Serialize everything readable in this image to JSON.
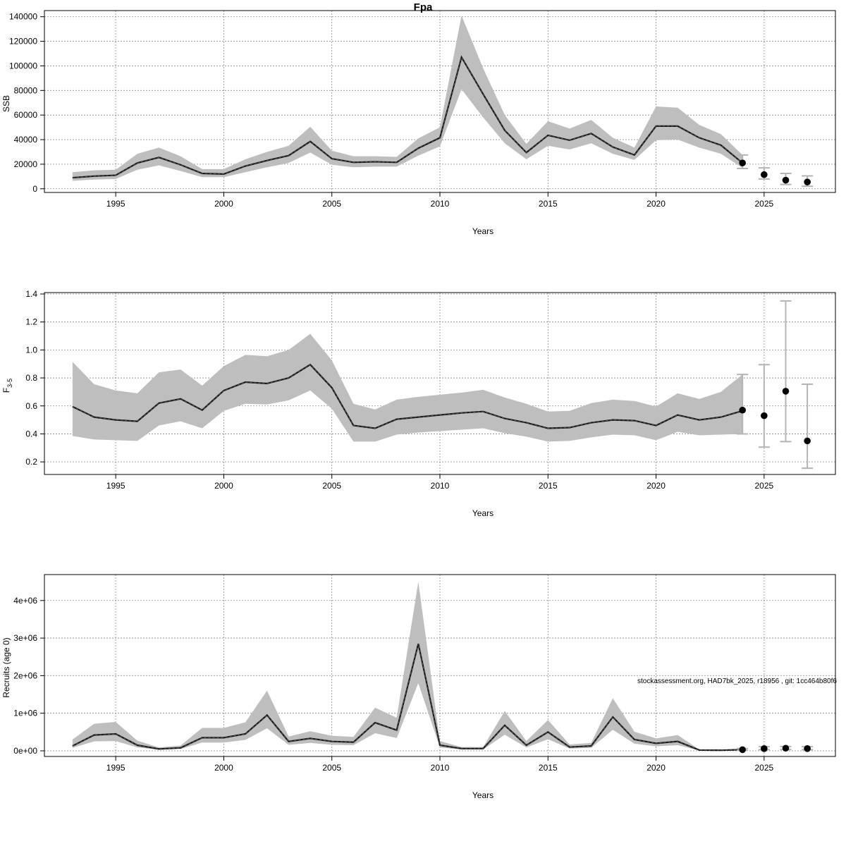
{
  "title": "Fpa",
  "credit": "stockassessment.org, HAD7bk_2025, r18956 , git: 1cc464b80f6",
  "colors": {
    "band": "#bebebe",
    "line": "#1a1a1a",
    "errorbar": "#b4b4b4",
    "point": "#000000",
    "grid": "#888888",
    "frame": "#000000"
  },
  "chart_data": [
    {
      "type": "line",
      "panel": "ssb",
      "title": "Fpa",
      "xlabel": "Years",
      "ylabel": "SSB",
      "xlim": [
        1991.7,
        2028.3
      ],
      "ylim": [
        -3000,
        145000
      ],
      "xticks": [
        1995,
        2000,
        2005,
        2010,
        2015,
        2020,
        2025
      ],
      "yticks": [
        0,
        20000,
        40000,
        60000,
        80000,
        100000,
        120000,
        140000
      ],
      "ytick_labels": [
        "0",
        "20000",
        "40000",
        "60000",
        "80000",
        "100000",
        "120000",
        "140000"
      ],
      "grid": true,
      "years": [
        1993,
        1994,
        1995,
        1996,
        1997,
        1998,
        1999,
        2000,
        2001,
        2002,
        2003,
        2004,
        2005,
        2006,
        2007,
        2008,
        2009,
        2010,
        2011,
        2012,
        2013,
        2014,
        2015,
        2016,
        2017,
        2018,
        2019,
        2020,
        2021,
        2022,
        2023,
        2024
      ],
      "estimate": [
        9000,
        10300,
        11000,
        21000,
        25500,
        19500,
        12500,
        12000,
        18500,
        23000,
        27000,
        38500,
        24500,
        21500,
        22000,
        21500,
        33000,
        41500,
        107000,
        77000,
        47500,
        29500,
        43500,
        39500,
        45000,
        34000,
        27500,
        51000,
        51000,
        41500,
        35500,
        21000
      ],
      "lower": [
        6500,
        7500,
        8000,
        15500,
        19000,
        14500,
        9500,
        9500,
        13500,
        17500,
        21000,
        29500,
        19500,
        17500,
        18000,
        18000,
        27000,
        34500,
        81000,
        58000,
        37000,
        24000,
        35000,
        32000,
        37000,
        28500,
        23500,
        39500,
        40000,
        33500,
        28500,
        17000
      ],
      "upper": [
        13500,
        15000,
        15500,
        28500,
        33500,
        26500,
        16000,
        16000,
        24000,
        30000,
        35000,
        50500,
        31000,
        26500,
        26500,
        26000,
        41000,
        50000,
        141000,
        98000,
        60000,
        36500,
        55000,
        49000,
        56000,
        41500,
        33500,
        67000,
        66000,
        52000,
        44500,
        27500
      ],
      "forecast": {
        "years": [
          2024,
          2025,
          2026,
          2027
        ],
        "estimate": [
          21000,
          11500,
          7000,
          5500
        ],
        "lower": [
          16500,
          8000,
          3500,
          2000
        ],
        "upper": [
          27500,
          17000,
          12500,
          10500
        ]
      }
    },
    {
      "type": "line",
      "panel": "fbar",
      "xlabel": "Years",
      "ylabel": "F",
      "ylabel_sub": "3-5",
      "xlim": [
        1991.7,
        2028.3
      ],
      "ylim": [
        0.11,
        1.41
      ],
      "xticks": [
        1995,
        2000,
        2005,
        2010,
        2015,
        2020,
        2025
      ],
      "yticks": [
        0.2,
        0.4,
        0.6,
        0.8,
        1.0,
        1.2,
        1.4
      ],
      "ytick_labels": [
        "0.2",
        "0.4",
        "0.6",
        "0.8",
        "1.0",
        "1.2",
        "1.4"
      ],
      "grid": true,
      "years": [
        1993,
        1994,
        1995,
        1996,
        1997,
        1998,
        1999,
        2000,
        2001,
        2002,
        2003,
        2004,
        2005,
        2006,
        2007,
        2008,
        2009,
        2010,
        2011,
        2012,
        2013,
        2014,
        2015,
        2016,
        2017,
        2018,
        2019,
        2020,
        2021,
        2022,
        2023,
        2024
      ],
      "estimate": [
        0.595,
        0.52,
        0.5,
        0.49,
        0.62,
        0.65,
        0.57,
        0.71,
        0.77,
        0.76,
        0.8,
        0.895,
        0.73,
        0.46,
        0.44,
        0.505,
        0.52,
        0.535,
        0.55,
        0.56,
        0.51,
        0.48,
        0.44,
        0.445,
        0.48,
        0.5,
        0.495,
        0.46,
        0.535,
        0.5,
        0.52,
        0.565
      ],
      "lower": [
        0.385,
        0.36,
        0.355,
        0.35,
        0.46,
        0.49,
        0.44,
        0.565,
        0.615,
        0.61,
        0.64,
        0.71,
        0.58,
        0.345,
        0.345,
        0.395,
        0.41,
        0.42,
        0.43,
        0.44,
        0.405,
        0.38,
        0.345,
        0.35,
        0.375,
        0.395,
        0.39,
        0.355,
        0.415,
        0.39,
        0.395,
        0.4
      ],
      "upper": [
        0.915,
        0.755,
        0.71,
        0.69,
        0.84,
        0.86,
        0.745,
        0.885,
        0.965,
        0.955,
        1.0,
        1.115,
        0.925,
        0.615,
        0.575,
        0.645,
        0.665,
        0.68,
        0.695,
        0.715,
        0.66,
        0.615,
        0.56,
        0.565,
        0.62,
        0.645,
        0.635,
        0.595,
        0.69,
        0.65,
        0.7,
        0.825
      ],
      "forecast": {
        "years": [
          2024,
          2025,
          2026,
          2027
        ],
        "estimate": [
          0.57,
          0.53,
          0.705,
          0.35
        ],
        "lower": [
          0.4,
          0.305,
          0.345,
          0.155
        ],
        "upper": [
          0.825,
          0.895,
          1.35,
          0.755
        ]
      }
    },
    {
      "type": "line",
      "panel": "recruits",
      "xlabel": "Years",
      "ylabel": "Recruits (age 0)",
      "xlim": [
        1991.7,
        2028.3
      ],
      "ylim": [
        -150000,
        4690000
      ],
      "xticks": [
        1995,
        2000,
        2005,
        2010,
        2015,
        2020,
        2025
      ],
      "yticks": [
        0,
        1000000,
        2000000,
        3000000,
        4000000
      ],
      "ytick_labels": [
        "0e+00",
        "1e+06",
        "2e+06",
        "3e+06",
        "4e+06"
      ],
      "grid": true,
      "years": [
        1993,
        1994,
        1995,
        1996,
        1997,
        1998,
        1999,
        2000,
        2001,
        2002,
        2003,
        2004,
        2005,
        2006,
        2007,
        2008,
        2009,
        2010,
        2011,
        2012,
        2013,
        2014,
        2015,
        2016,
        2017,
        2018,
        2019,
        2020,
        2021,
        2022,
        2023,
        2024
      ],
      "estimate": [
        130000,
        420000,
        450000,
        150000,
        50000,
        80000,
        350000,
        350000,
        450000,
        950000,
        250000,
        330000,
        250000,
        230000,
        750000,
        550000,
        2850000,
        150000,
        60000,
        60000,
        680000,
        150000,
        500000,
        100000,
        130000,
        900000,
        300000,
        200000,
        250000,
        20000,
        15000,
        30000
      ],
      "lower": [
        80000,
        250000,
        260000,
        90000,
        30000,
        50000,
        220000,
        220000,
        290000,
        600000,
        160000,
        210000,
        160000,
        150000,
        470000,
        340000,
        1800000,
        90000,
        35000,
        35000,
        430000,
        90000,
        310000,
        60000,
        80000,
        560000,
        190000,
        120000,
        150000,
        10000,
        8000,
        15000
      ],
      "upper": [
        300000,
        720000,
        770000,
        270000,
        90000,
        140000,
        610000,
        610000,
        760000,
        1600000,
        380000,
        520000,
        400000,
        370000,
        1150000,
        880000,
        4500000,
        260000,
        100000,
        100000,
        1060000,
        260000,
        820000,
        170000,
        210000,
        1400000,
        510000,
        330000,
        420000,
        35000,
        30000,
        60000
      ],
      "forecast": {
        "years": [
          2024,
          2025,
          2026,
          2027
        ],
        "estimate": [
          30000,
          60000,
          70000,
          60000
        ],
        "lower": [
          15000,
          30000,
          35000,
          30000
        ],
        "upper": [
          60000,
          110000,
          115000,
          110000
        ]
      }
    }
  ]
}
